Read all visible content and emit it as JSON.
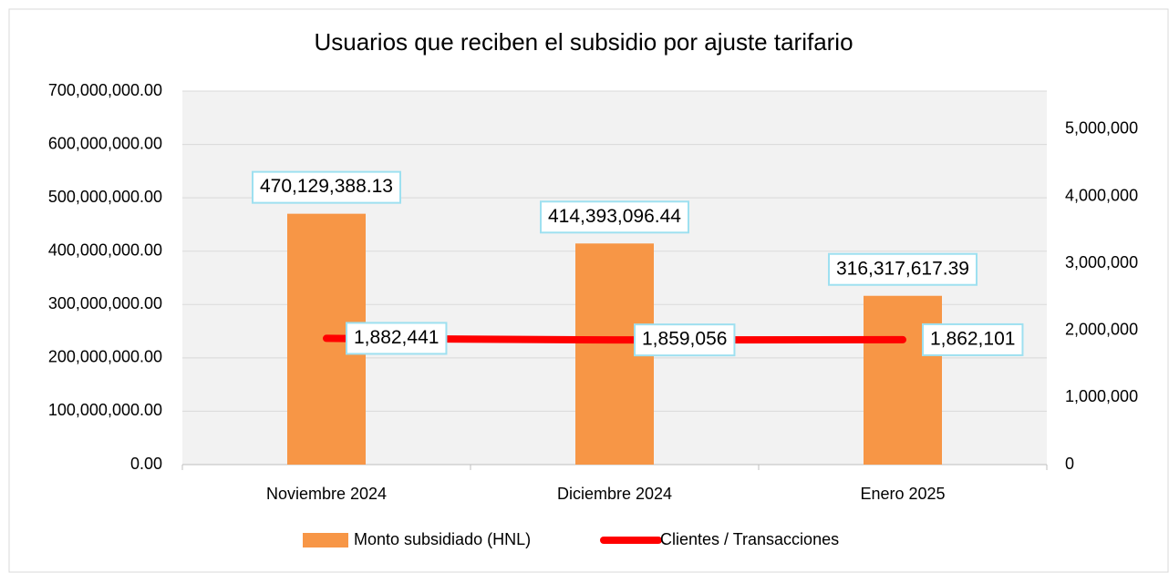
{
  "chart_data": {
    "type": "combo",
    "title": "Usuarios que reciben el subsidio por ajuste tarifario",
    "categories": [
      "Noviembre 2024",
      "Diciembre 2024",
      "Enero 2025"
    ],
    "series": [
      {
        "name": "Monto subsidiado (HNL)",
        "type": "bar",
        "color": "#f79646",
        "values": [
          470129388.13,
          414393096.44,
          316317617.39
        ],
        "value_labels": [
          "470,129,388.13",
          "414,393,096.44",
          "316,317,617.39"
        ]
      },
      {
        "name": "Clientes / Transacciones",
        "type": "line",
        "axis": "y2",
        "color": "#ff0000",
        "values": [
          1882441,
          1859056,
          1862101
        ],
        "value_labels": [
          "1,882,441",
          "1,859,056",
          "1,862,101"
        ]
      }
    ],
    "ylim": [
      0,
      700000000
    ],
    "yticks": [
      {
        "value": 0,
        "label": "0.00"
      },
      {
        "value": 100000000,
        "label": "100,000,000.00"
      },
      {
        "value": 200000000,
        "label": "200,000,000.00"
      },
      {
        "value": 300000000,
        "label": "300,000,000.00"
      },
      {
        "value": 400000000,
        "label": "400,000,000.00"
      },
      {
        "value": 500000000,
        "label": "500,000,000.00"
      },
      {
        "value": 600000000,
        "label": "600,000,000.00"
      },
      {
        "value": 700000000,
        "label": "700,000,000.00"
      }
    ],
    "y2lim": [
      0,
      5570000
    ],
    "y2ticks": [
      0,
      {
        "value": 1000000,
        "label": "1,000,000"
      },
      {
        "value": 2000000,
        "label": "2,000,000"
      },
      {
        "value": 3000000,
        "label": "3,000,000"
      },
      {
        "value": 4000000,
        "label": "4,000,000"
      },
      {
        "value": 5000000,
        "label": "5,000,000"
      }
    ],
    "grid": true
  }
}
